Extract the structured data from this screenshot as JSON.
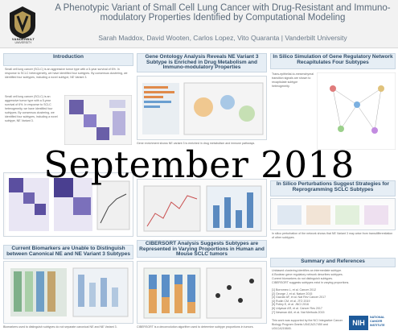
{
  "header": {
    "title": "A Phenotypic Variant of Small Cell Lung Cancer with Drug-Resistant and Immuno-modulatory Properties Identified by Computational Modeling",
    "authors": "Sarah Maddox, David Wooten, Carlos Lopez, Vito Quaranta | Vanderbilt University",
    "logo_name": "VANDERBILT",
    "logo_sub": "UNIVERSITY"
  },
  "watermark": "September 2018",
  "sections": {
    "introduction": "Introduction",
    "gene_ontology": "Gene Ontology Analysis Reveals NE Variant 3 Subtype is Enriched in Drug Metabolism and Immuno-modulatory Properties",
    "simulation": "In Silico Simulation of Gene Regulatory Network Recapitulates Four Subtypes",
    "biomarkers": "Current Biomarkers are Unable to Distinguish between Canonical NE and NE Variant 3 Subtypes",
    "cibersort": "CIBERSORT Analysis Suggests Subtypes are Represented in Varying Proportions in Human and Mouse SCLC tumors",
    "summary": "Summary and References",
    "in_silico_perturb": "In Silico Perturbations Suggest Strategies for Reprogramming SCLC Subtypes"
  },
  "intro_text": "Small cell lung cancer (SCLC) is an aggressive tumor type with a 5-year survival of 6%. In response to SCLC heterogeneity, we have identified four subtypes. By consensus clustering, we identified four subtypes, including a novel subtype, NE Variant 3.",
  "gene_ontology_text": "Gene enrichment shows NE variant 3 is enriched in drug metabolism and immune pathways.",
  "sim_text": "Trans-epithelial-to-mesenchymal transition signals are shown to recapitulate subtype heterogeneity.",
  "perturb_text": "In silico perturbation of the network shows that NE Variant 3 may arise from transdifferentiation of other subtypes.",
  "summary_items": [
    "Unbiased clustering identifies an intermediate subtype.",
    "A Boolean gene regulatory network describes subtypes.",
    "Current biomarkers do not distinguish subtypes.",
    "CIBERSORT suggests subtypes exist in varying proportions."
  ],
  "references": [
    "[1] Borromeo L, et al. Cancer 2012",
    "[2] George J, et al. Nature 2015",
    "[3] Gazdar AF, et al. Nat Rev Cancer 2017",
    "[4] Rudin CM, et al. JTO 2019",
    "[5] Polley E, et al. JNCI 2016",
    "[6] Udyavar AR, et al. Cancer Res 2017",
    "[7] Newman AM, et al. Nat Methods 2015"
  ],
  "funding": "This work was supported by the NCI Integrative Cancer Biology Program Grants U54CA217450 and U01CA215845.",
  "biomarker_caption": "Biomarkers used to distinguish subtypes do not separate canonical NE and NE Variant 3.",
  "cibersort_caption": "CIBERSORT is a deconvolution algorithm used to determine subtype proportions in tumors.",
  "nih_label": "NIH",
  "nci_label": "NATIONAL CANCER INSTITUTE",
  "colors": {
    "header_bg": "#f2f2f2",
    "section_bg": "#e6eef5",
    "section_text": "#2d4a66",
    "nih_blue": "#1d5a9a"
  }
}
